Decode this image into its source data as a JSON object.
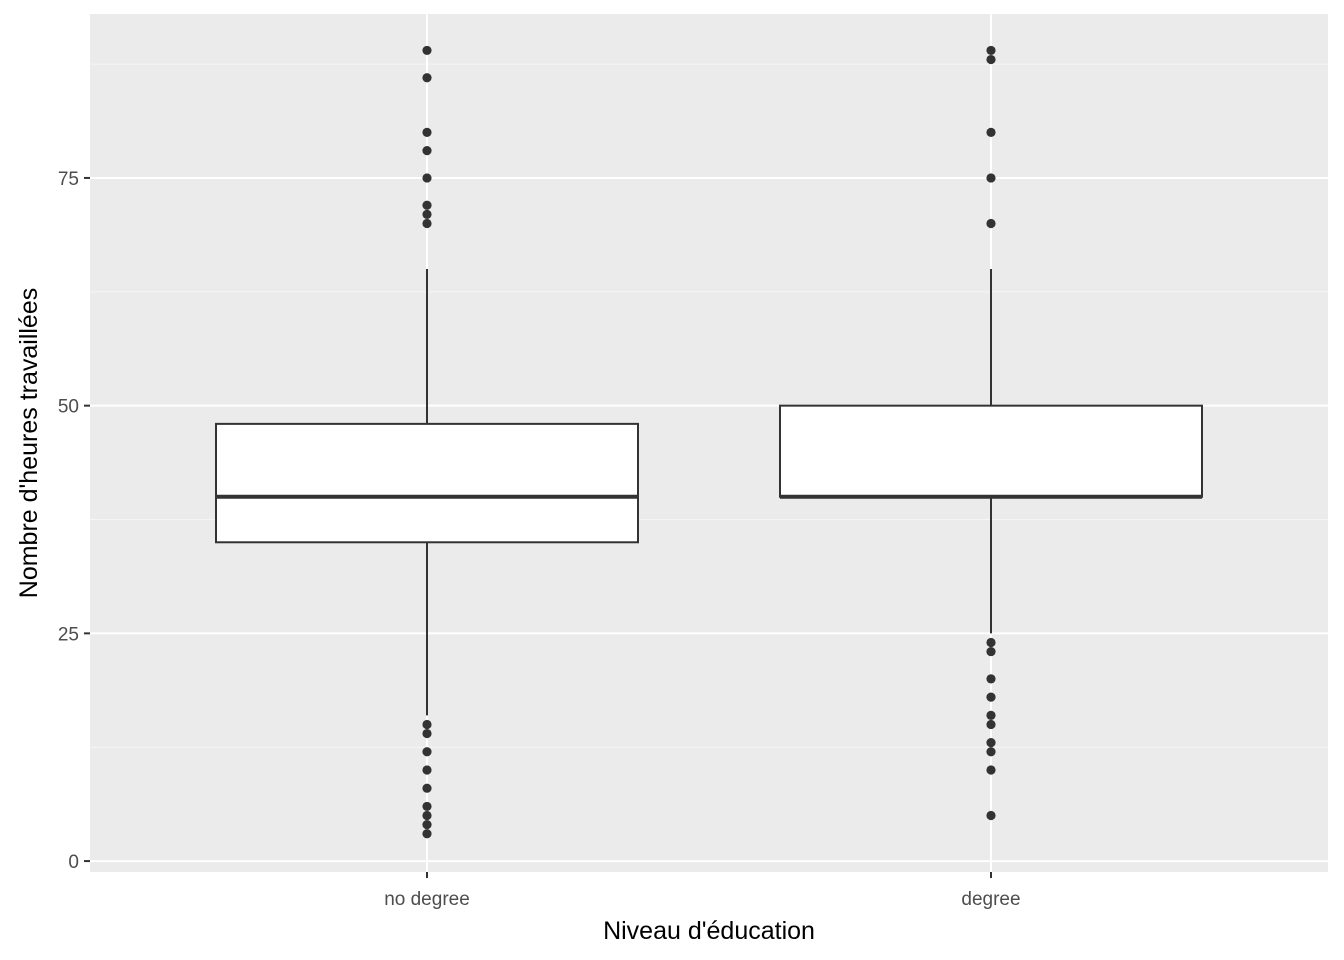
{
  "chart_data": {
    "type": "boxplot",
    "xlabel": "Niveau d'éducation",
    "ylabel": "Nombre d'heures travaillées",
    "categories": [
      "no degree",
      "degree"
    ],
    "ylim": [
      -1.2,
      93
    ],
    "yticks": [
      0,
      25,
      50,
      75
    ],
    "grid": true,
    "legend": "none",
    "boxes": [
      {
        "category": "no degree",
        "lower_whisker": 16,
        "q1": 35,
        "median": 40,
        "q3": 48,
        "upper_whisker": 65,
        "outliers": [
          89,
          86,
          80,
          78,
          75,
          72,
          71,
          70,
          15,
          14,
          12,
          10,
          8,
          6,
          5,
          4,
          3
        ]
      },
      {
        "category": "degree",
        "lower_whisker": 25,
        "q1": 40,
        "median": 40,
        "q3": 50,
        "upper_whisker": 65,
        "outliers": [
          89,
          88,
          80,
          75,
          70,
          24,
          23,
          20,
          18,
          16,
          15,
          13,
          12,
          10,
          5
        ]
      }
    ],
    "colors": {
      "panel_background": "#ebebeb",
      "grid_major": "#ffffff",
      "grid_minor": "#f5f5f5",
      "box_fill": "#ffffff",
      "box_line": "#333333",
      "point": "#333333"
    }
  }
}
